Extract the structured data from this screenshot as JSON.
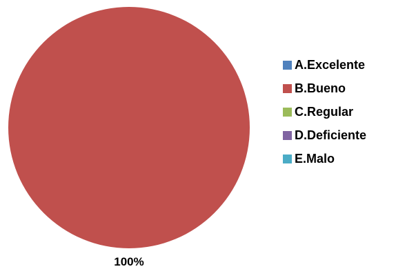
{
  "chart_data": {
    "type": "pie",
    "title": "",
    "categories": [
      "A.Excelente",
      "B.Bueno",
      "C.Regular",
      "D.Deficiente",
      "E.Malo"
    ],
    "values": [
      0,
      100,
      0,
      0,
      0
    ],
    "colors": [
      "#4f81bd",
      "#c0504d",
      "#9bbb59",
      "#8064a2",
      "#4bacc6"
    ],
    "data_labels": [
      "100%"
    ],
    "legend_position": "right"
  }
}
